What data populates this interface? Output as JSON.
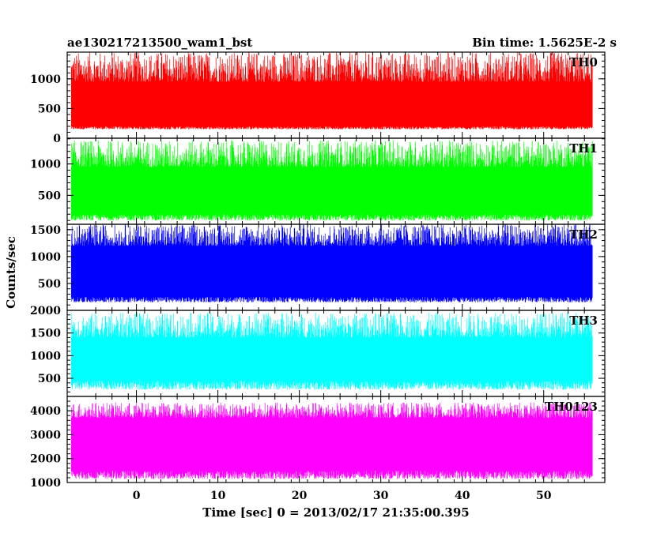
{
  "header": {
    "left_title": "ae130217213500_wam1_bst",
    "right_title": "Bin time: 1.5625E-2 s"
  },
  "chart_data": {
    "type": "line",
    "title": "ae130217213500_wam1_bst",
    "subtitle": "Bin time: 1.5625E-2 s",
    "xlabel": "Time [sec] 0 = 2013/02/17 21:35:00.395",
    "ylabel": "Counts/sec",
    "xlim": [
      -8.5,
      57.5
    ],
    "x_ticks": [
      0,
      10,
      20,
      30,
      40,
      50
    ],
    "x_tick_labels": [
      "0",
      "10",
      "20",
      "30",
      "40",
      "50"
    ],
    "x_data_range": [
      -8,
      56
    ],
    "bin_time": 0.015625,
    "grid": false,
    "panels": [
      {
        "name": "TH0",
        "color": "#ff0000",
        "ylim": [
          0,
          1450
        ],
        "y_ticks": [
          0,
          500,
          1000
        ],
        "y_tick_labels": [
          "0",
          "500",
          "1000"
        ],
        "envelope_low": [
          150,
          200
        ],
        "envelope_high": [
          950,
          1450
        ],
        "typical": 550
      },
      {
        "name": "TH1",
        "color": "#00ff00",
        "ylim": [
          40,
          1410
        ],
        "y_ticks": [
          500,
          1000
        ],
        "y_tick_labels": [
          "500",
          "1000"
        ],
        "envelope_low": [
          100,
          200
        ],
        "envelope_high": [
          950,
          1380
        ],
        "typical": 600
      },
      {
        "name": "TH2",
        "color": "#0000ff",
        "ylim": [
          0,
          1600
        ],
        "y_ticks": [
          500,
          1000,
          1500
        ],
        "y_tick_labels": [
          "500",
          "1000",
          "1500"
        ],
        "envelope_low": [
          150,
          250
        ],
        "envelope_high": [
          1200,
          1600
        ],
        "typical": 700
      },
      {
        "name": "TH3",
        "color": "#00ffff",
        "ylim": [
          100,
          2000
        ],
        "y_ticks": [
          500,
          1000,
          1500,
          2000
        ],
        "y_tick_labels": [
          "500",
          "1000",
          "1500",
          "2000"
        ],
        "envelope_low": [
          250,
          450
        ],
        "envelope_high": [
          1400,
          1950
        ],
        "typical": 1000
      },
      {
        "name": "TH0123",
        "color": "#ff00ff",
        "ylim": [
          1000,
          4600
        ],
        "y_ticks": [
          1000,
          2000,
          3000,
          4000
        ],
        "y_tick_labels": [
          "1000",
          "2000",
          "3000",
          "4000"
        ],
        "envelope_low": [
          1150,
          1500
        ],
        "envelope_high": [
          3700,
          4350
        ],
        "typical": 2500
      }
    ]
  }
}
